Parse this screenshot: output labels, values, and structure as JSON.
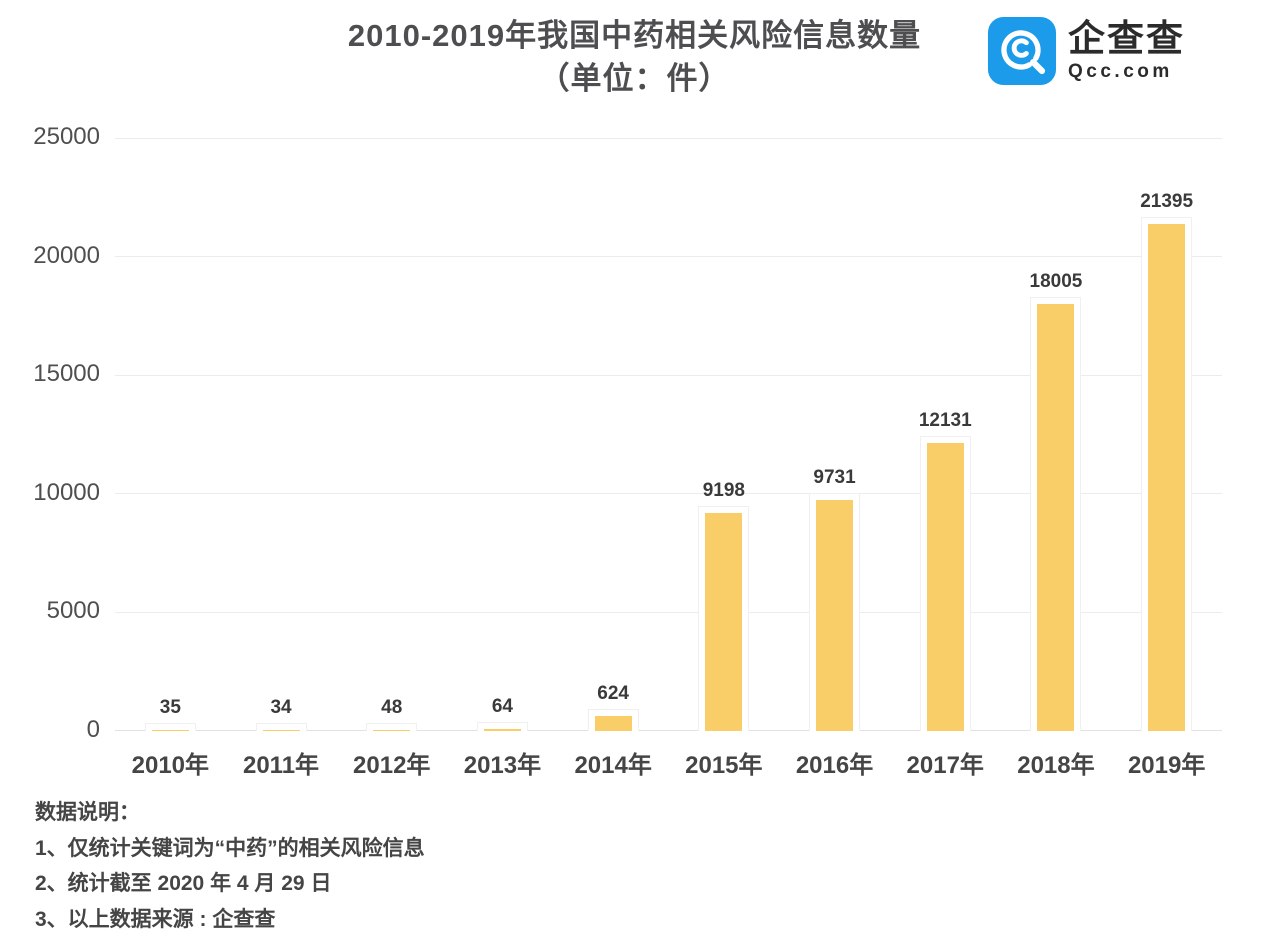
{
  "title": {
    "line1": "2010-2019年我国中药相关风险信息数量",
    "line2": "（单位：件）"
  },
  "logo": {
    "icon": "qcc-magnifier-icon",
    "name_cn": "企查查",
    "domain": "Qcc.com",
    "brand_color": "#1b9be9"
  },
  "chart_data": {
    "type": "bar",
    "title": "2010-2019年我国中药相关风险信息数量（单位：件）",
    "categories": [
      "2010年",
      "2011年",
      "2012年",
      "2013年",
      "2014年",
      "2015年",
      "2016年",
      "2017年",
      "2018年",
      "2019年"
    ],
    "values": [
      35,
      34,
      48,
      64,
      624,
      9198,
      9731,
      12131,
      18005,
      21395
    ],
    "xlabel": "",
    "ylabel": "",
    "ylim": [
      0,
      25000
    ],
    "yticks": [
      0,
      5000,
      10000,
      15000,
      20000,
      25000
    ],
    "grid": true,
    "legend": false,
    "data_labels": true,
    "bar_color": "#f9ce69",
    "gridline_color": "#ececec",
    "label_color": "#3a3a3a"
  },
  "notes": {
    "heading": "数据说明：",
    "items": [
      "1、仅统计关键词为“中药”的相关风险信息",
      "2、统计截至 2020 年 4 月 29 日",
      "3、以上数据来源 : 企查查"
    ]
  }
}
